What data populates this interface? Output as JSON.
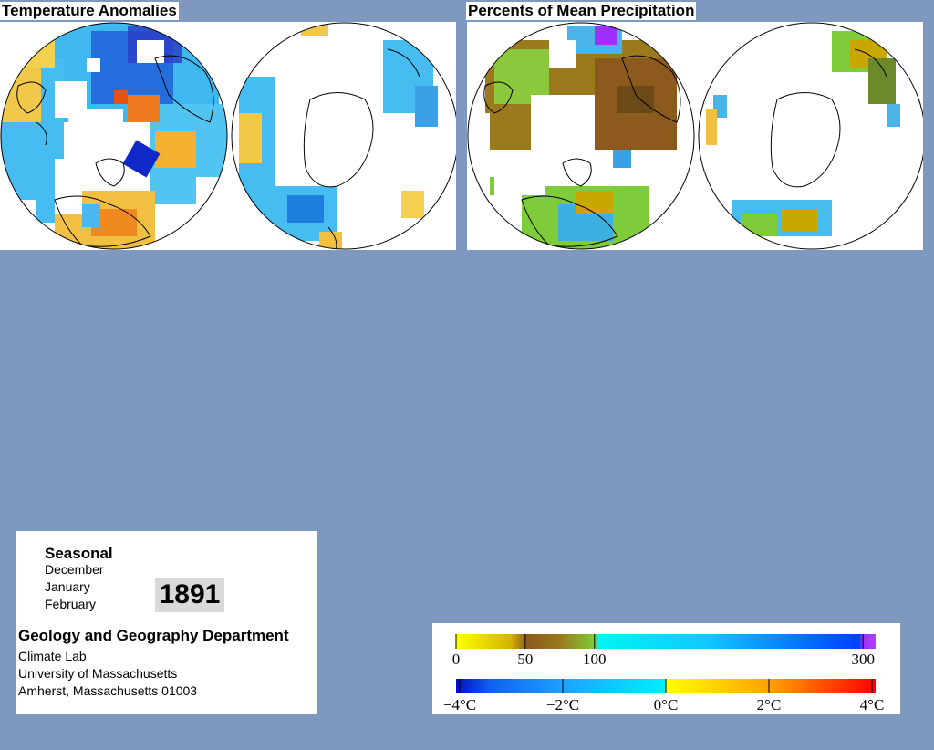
{
  "temperature": {
    "title": "Temperature Anomalies"
  },
  "precipitation": {
    "title": "Percents of Mean Precipitation"
  },
  "info": {
    "period": "Seasonal",
    "months": [
      "December",
      "January",
      "February"
    ],
    "year": "1891",
    "department": "Geology and Geography Department",
    "lines": [
      "Climate Lab",
      "University of Massachusetts",
      "Amherst, Massachusetts 01003"
    ]
  },
  "legend": {
    "precip_scale": {
      "ticks": [
        {
          "label": "0",
          "value": 0
        },
        {
          "label": "50",
          "value": 50
        },
        {
          "label": "100",
          "value": 100
        },
        {
          "label": "300",
          "value": 300
        }
      ],
      "colors": [
        "#ffff00",
        "#c8a800",
        "#8b5a1c",
        "#7fcc3a",
        "#00f0f0",
        "#1ec8ff",
        "#0050ff",
        "#9b30ff"
      ]
    },
    "temp_scale": {
      "ticks": [
        {
          "label": "−4°C",
          "value": -4
        },
        {
          "label": "−2°C",
          "value": -2
        },
        {
          "label": "0°C",
          "value": 0
        },
        {
          "label": "2°C",
          "value": 2
        },
        {
          "label": "4°C",
          "value": 4
        }
      ],
      "colors": [
        "#0018c8",
        "#1e90ff",
        "#00e0ff",
        "#ffff00",
        "#ffb000",
        "#ff4000",
        "#ff0000"
      ]
    }
  }
}
